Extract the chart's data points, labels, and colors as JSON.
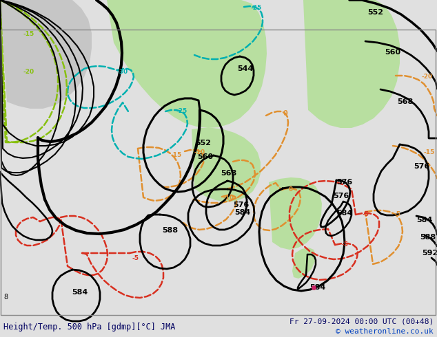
{
  "title_left": "Height/Temp. 500 hPa [gdmp][°C] JMA",
  "title_right": "Fr 27-09-2024 00:00 UTC (00+48)",
  "copyright": "© weatheronline.co.uk",
  "bg_color": "#e0e0e0",
  "green_color": "#b8dfa0",
  "gray_land_color": "#c0c0c0",
  "black_contour": "#000000",
  "orange_temp": "#e09030",
  "red_temp": "#d83020",
  "cyan_temp": "#00b0b0",
  "yellow_temp": "#88c010",
  "figsize": [
    6.34,
    4.9
  ],
  "dpi": 100
}
